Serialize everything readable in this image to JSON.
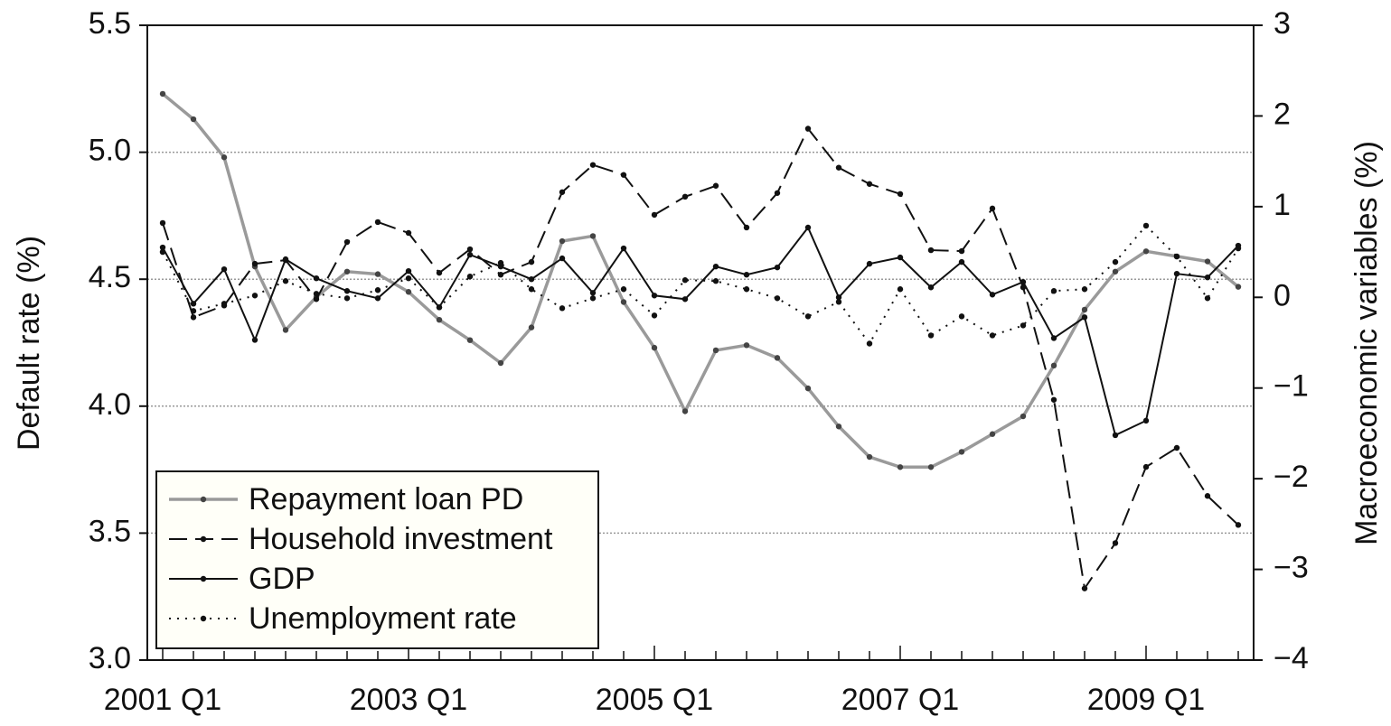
{
  "chart_data": {
    "type": "line",
    "ylabel": "Default rate (%)",
    "y2label": "Macroeconomic variables (%)",
    "categories": [
      "2001 Q1",
      null,
      null,
      null,
      null,
      null,
      null,
      null,
      "2003 Q1",
      null,
      null,
      null,
      null,
      null,
      null,
      null,
      "2005 Q1",
      null,
      null,
      null,
      null,
      null,
      null,
      null,
      "2007 Q1",
      null,
      null,
      null,
      null,
      null,
      null,
      null,
      "2009 Q1",
      null,
      null,
      null
    ],
    "ylim": [
      3.0,
      5.5
    ],
    "yticks": [
      {
        "value": 3,
        "label": "3.0"
      },
      3.5,
      {
        "value": 4,
        "label": "4.0"
      },
      4.5,
      {
        "value": 5,
        "label": "5.0"
      },
      5.5
    ],
    "y2lim": [
      -4,
      3
    ],
    "y2ticks": [
      {
        "value": -4,
        "label": "−4"
      },
      {
        "value": -3,
        "label": "−3"
      },
      {
        "value": -2,
        "label": "−2"
      },
      {
        "value": -1,
        "label": "−1"
      },
      0,
      1,
      2,
      3
    ],
    "grid": true,
    "legend": "lower left",
    "series": [
      {
        "name": "Repayment loan PD",
        "color": "#9a9a9a",
        "style": "solid",
        "axis": "y",
        "values": [
          5.23,
          5.13,
          4.98,
          4.55,
          4.3,
          4.43,
          4.53,
          4.52,
          4.45,
          4.34,
          4.26,
          4.17,
          4.31,
          4.65,
          4.67,
          4.41,
          4.23,
          3.98,
          4.22,
          4.24,
          4.19,
          4.07,
          3.92,
          3.8,
          3.76,
          3.76,
          3.82,
          3.89,
          3.96,
          4.16,
          4.38,
          4.53,
          4.61,
          4.59,
          4.57,
          4.47
        ]
      },
      {
        "name": "Household investment",
        "color": "#111111",
        "style": "dashed",
        "axis": "y2",
        "values": [
          0.82,
          -0.22,
          -0.09,
          0.37,
          0.41,
          -0.02,
          0.61,
          0.83,
          0.71,
          0.27,
          0.53,
          0.25,
          0.39,
          1.16,
          1.46,
          1.35,
          0.91,
          1.11,
          1.23,
          0.77,
          1.15,
          1.86,
          1.43,
          1.25,
          1.14,
          0.52,
          0.51,
          0.98,
          0.11,
          -1.13,
          -3.21,
          -2.71,
          -1.87,
          -1.66,
          -2.19,
          -2.51
        ]
      },
      {
        "name": "GDP",
        "color": "#111111",
        "style": "solid",
        "axis": "y2",
        "values": [
          0.55,
          -0.07,
          0.31,
          -0.47,
          0.42,
          0.21,
          0.07,
          -0.01,
          0.29,
          -0.11,
          0.47,
          0.34,
          0.2,
          0.43,
          0.05,
          0.54,
          0.02,
          -0.02,
          0.34,
          0.25,
          0.33,
          0.77,
          0.0,
          0.37,
          0.44,
          0.11,
          0.39,
          0.03,
          0.17,
          -0.45,
          -0.22,
          -1.52,
          -1.36,
          0.26,
          0.22,
          0.57
        ]
      },
      {
        "name": "Unemployment rate",
        "color": "#111111",
        "style": "dotted",
        "axis": "y2",
        "values": [
          0.5,
          -0.15,
          -0.07,
          0.02,
          0.18,
          0.04,
          -0.01,
          0.08,
          0.21,
          -0.11,
          0.23,
          0.38,
          0.09,
          -0.12,
          -0.01,
          0.09,
          -0.2,
          0.19,
          0.18,
          0.09,
          -0.01,
          -0.21,
          -0.05,
          -0.51,
          0.09,
          -0.42,
          -0.21,
          -0.42,
          -0.31,
          0.07,
          0.09,
          0.39,
          0.79,
          0.45,
          -0.01,
          0.54
        ]
      }
    ]
  }
}
